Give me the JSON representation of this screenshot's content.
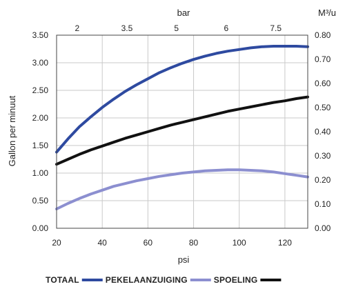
{
  "chart_data": {
    "type": "line",
    "title": "",
    "xlabel": "psi",
    "ylabel": "Gallon per minuut",
    "top_axis_label": "bar",
    "right_axis_label": "M³/u",
    "xlim": [
      20,
      130
    ],
    "ylim": [
      0,
      3.5
    ],
    "ylim_right": [
      0,
      0.8
    ],
    "x_ticks": [
      20,
      40,
      60,
      80,
      100,
      120
    ],
    "y_ticks": [
      "0.00",
      "0.50",
      "1.00",
      "1.50",
      "2.00",
      "2.50",
      "3.00",
      "3.50"
    ],
    "y_right_ticks": [
      "0.00",
      "0.10",
      "0.20",
      "0.30",
      "0.40",
      "0.50",
      "0.60",
      "0.70",
      "0.80"
    ],
    "top_ticks": [
      {
        "label": "2",
        "psi": 29
      },
      {
        "label": "3.5",
        "psi": 50.8
      },
      {
        "label": "5",
        "psi": 72.5
      },
      {
        "label": "6",
        "psi": 94.3
      },
      {
        "label": "7.5",
        "psi": 116
      }
    ],
    "grid": true,
    "legend_position": "bottom",
    "series": [
      {
        "name": "TOTAAL",
        "color": "#2e4aa0",
        "points": [
          [
            20,
            1.38
          ],
          [
            25,
            1.62
          ],
          [
            30,
            1.84
          ],
          [
            35,
            2.02
          ],
          [
            40,
            2.19
          ],
          [
            45,
            2.34
          ],
          [
            50,
            2.48
          ],
          [
            55,
            2.6
          ],
          [
            60,
            2.71
          ],
          [
            65,
            2.82
          ],
          [
            70,
            2.91
          ],
          [
            75,
            2.99
          ],
          [
            80,
            3.06
          ],
          [
            85,
            3.12
          ],
          [
            90,
            3.17
          ],
          [
            95,
            3.21
          ],
          [
            100,
            3.24
          ],
          [
            105,
            3.27
          ],
          [
            110,
            3.29
          ],
          [
            115,
            3.3
          ],
          [
            120,
            3.3
          ],
          [
            125,
            3.3
          ],
          [
            130,
            3.29
          ]
        ]
      },
      {
        "name": "PEKELAANZUIGING",
        "color": "#8c8fd0",
        "points": [
          [
            20,
            0.35
          ],
          [
            25,
            0.45
          ],
          [
            30,
            0.54
          ],
          [
            35,
            0.62
          ],
          [
            40,
            0.69
          ],
          [
            45,
            0.76
          ],
          [
            50,
            0.81
          ],
          [
            55,
            0.86
          ],
          [
            60,
            0.9
          ],
          [
            65,
            0.94
          ],
          [
            70,
            0.97
          ],
          [
            75,
            1.0
          ],
          [
            80,
            1.02
          ],
          [
            85,
            1.04
          ],
          [
            90,
            1.05
          ],
          [
            95,
            1.06
          ],
          [
            100,
            1.06
          ],
          [
            105,
            1.05
          ],
          [
            110,
            1.04
          ],
          [
            115,
            1.02
          ],
          [
            120,
            0.99
          ],
          [
            125,
            0.96
          ],
          [
            130,
            0.93
          ]
        ]
      },
      {
        "name": "SPOELING",
        "color": "#111111",
        "points": [
          [
            20,
            1.16
          ],
          [
            25,
            1.25
          ],
          [
            30,
            1.34
          ],
          [
            35,
            1.42
          ],
          [
            40,
            1.49
          ],
          [
            45,
            1.56
          ],
          [
            50,
            1.63
          ],
          [
            55,
            1.69
          ],
          [
            60,
            1.75
          ],
          [
            65,
            1.81
          ],
          [
            70,
            1.87
          ],
          [
            75,
            1.92
          ],
          [
            80,
            1.97
          ],
          [
            85,
            2.02
          ],
          [
            90,
            2.07
          ],
          [
            95,
            2.12
          ],
          [
            100,
            2.16
          ],
          [
            105,
            2.2
          ],
          [
            110,
            2.24
          ],
          [
            115,
            2.28
          ],
          [
            120,
            2.31
          ],
          [
            125,
            2.35
          ],
          [
            130,
            2.38
          ]
        ]
      }
    ]
  }
}
